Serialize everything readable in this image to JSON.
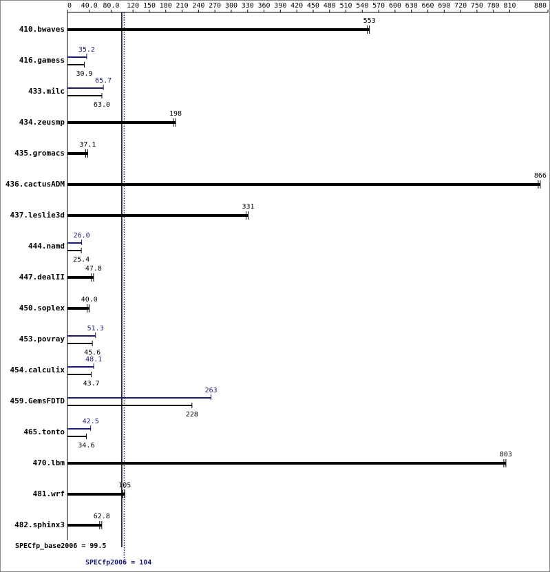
{
  "chart_data": {
    "type": "bar",
    "orientation": "horizontal",
    "categories": [
      "410.bwaves",
      "416.gamess",
      "433.milc",
      "434.zeusmp",
      "435.gromacs",
      "436.cactusADM",
      "437.leslie3d",
      "444.namd",
      "447.dealII",
      "450.soplex",
      "453.povray",
      "454.calculix",
      "459.GemsFDTD",
      "465.tonto",
      "470.lbm",
      "481.wrf",
      "482.sphinx3"
    ],
    "series": [
      {
        "color": "#000000",
        "values": [
          553,
          30.9,
          63.0,
          198,
          37.1,
          866,
          331,
          25.4,
          47.8,
          40.0,
          45.6,
          43.7,
          228,
          34.6,
          803,
          105,
          62.8
        ],
        "value_labels": [
          "553",
          "30.9",
          "63.0",
          "198",
          "37.1",
          "866",
          "331",
          "25.4",
          "47.8",
          "40.0",
          "45.6",
          "43.7",
          "228",
          "34.6",
          "803",
          "105",
          "62.8"
        ]
      },
      {
        "color": "#191970",
        "values": [
          null,
          35.2,
          65.7,
          null,
          null,
          null,
          null,
          26.0,
          null,
          null,
          51.3,
          48.1,
          263,
          42.5,
          null,
          null,
          null
        ],
        "value_labels": [
          null,
          "35.2",
          "65.7",
          null,
          null,
          null,
          null,
          "26.0",
          null,
          null,
          "51.3",
          "48.1",
          "263",
          "42.5",
          null,
          null,
          null
        ]
      }
    ],
    "xlim": [
      0,
      880
    ],
    "xticks": [
      0,
      {
        "value": 40,
        "label": "40.0"
      },
      {
        "value": 80,
        "label": "80.0"
      },
      120,
      150,
      180,
      210,
      240,
      270,
      300,
      330,
      360,
      390,
      420,
      450,
      480,
      510,
      540,
      570,
      600,
      630,
      660,
      690,
      720,
      750,
      780,
      810,
      880
    ],
    "reference_lines": [
      {
        "label": "SPECfp_base2006 = 99.5",
        "value": 99.5,
        "color": "#000000",
        "style": "solid"
      },
      {
        "label": "SPECfp2006 = 104",
        "value": 104,
        "color": "#191970",
        "style": "dotted"
      }
    ]
  }
}
